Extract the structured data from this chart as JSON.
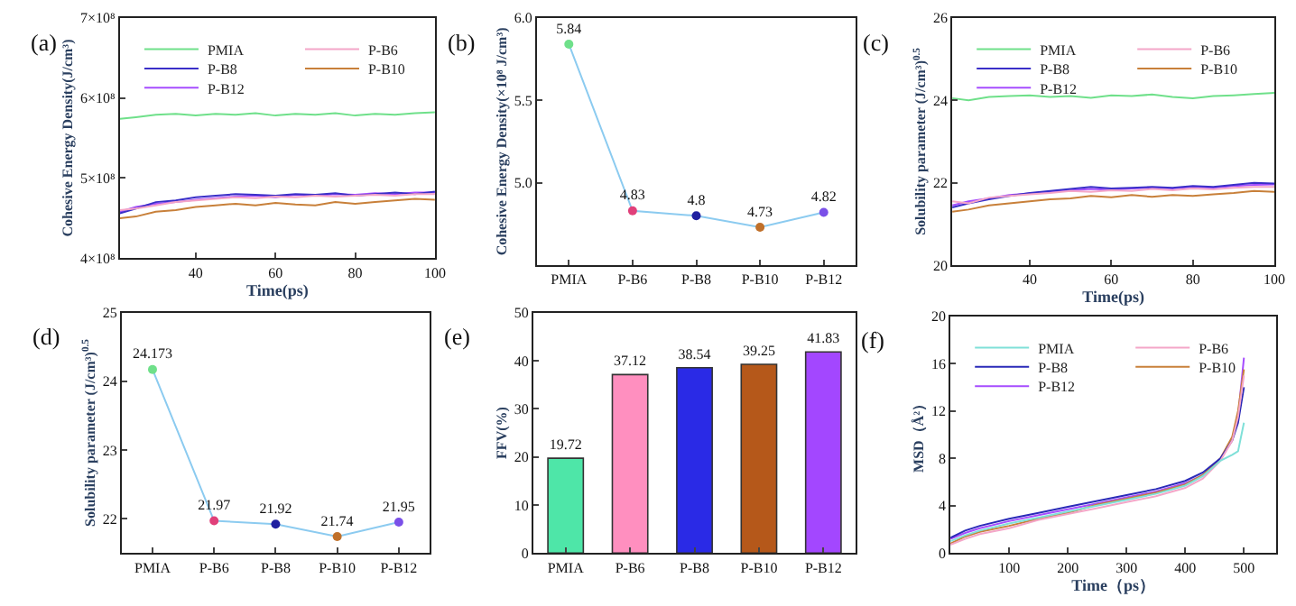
{
  "chart_data": [
    {
      "type": "line",
      "title": "(a)",
      "xlabel": "Time(ps)",
      "ylabel": "Cohesive Energy Density(J/cm³)",
      "x": [
        21,
        25,
        30,
        35,
        40,
        45,
        50,
        55,
        60,
        65,
        70,
        75,
        80,
        85,
        90,
        95,
        100
      ],
      "xlim": [
        21,
        100
      ],
      "xticks": [
        40,
        60,
        80,
        100
      ],
      "ylim": [
        400000000.0,
        700000000.0
      ],
      "yticks": [
        {
          "value": 400000000.0,
          "label": "4×10⁸"
        },
        {
          "value": 500000000.0,
          "label": "5×10⁸"
        },
        {
          "value": 600000000.0,
          "label": "6×10⁸"
        },
        {
          "value": 700000000.0,
          "label": "7×10⁸"
        }
      ],
      "legend": "top left",
      "marker": "none",
      "series": [
        {
          "name": "PMIA",
          "color": "#6fe08a",
          "values": [
            574000000.0,
            576000000.0,
            579000000.0,
            580000000.0,
            578000000.0,
            580000000.0,
            579000000.0,
            581000000.0,
            578000000.0,
            580000000.0,
            579000000.0,
            581000000.0,
            578000000.0,
            580000000.0,
            579000000.0,
            581000000.0,
            582000000.0
          ]
        },
        {
          "name": "P-B6",
          "color": "#f4a6c8",
          "values": [
            460000000.0,
            462000000.0,
            466000000.0,
            470000000.0,
            472000000.0,
            474000000.0,
            476000000.0,
            475000000.0,
            477000000.0,
            476000000.0,
            478000000.0,
            477000000.0,
            478000000.0,
            479000000.0,
            478000000.0,
            480000000.0,
            480000000.0
          ]
        },
        {
          "name": "P-B8",
          "color": "#3a2fc8",
          "values": [
            456000000.0,
            462000000.0,
            470000000.0,
            472000000.0,
            476000000.0,
            478000000.0,
            480000000.0,
            479000000.0,
            478000000.0,
            480000000.0,
            479000000.0,
            481000000.0,
            478000000.0,
            480000000.0,
            482000000.0,
            480000000.0,
            483000000.0
          ]
        },
        {
          "name": "P-B10",
          "color": "#c8803a",
          "values": [
            450000000.0,
            452000000.0,
            458000000.0,
            460000000.0,
            464000000.0,
            466000000.0,
            468000000.0,
            466000000.0,
            469000000.0,
            467000000.0,
            466000000.0,
            470000000.0,
            468000000.0,
            470000000.0,
            472000000.0,
            474000000.0,
            473000000.0
          ]
        },
        {
          "name": "P-B12",
          "color": "#a64dff",
          "values": [
            458000000.0,
            464000000.0,
            468000000.0,
            470000000.0,
            473000000.0,
            475000000.0,
            477000000.0,
            478000000.0,
            476000000.0,
            479000000.0,
            478000000.0,
            480000000.0,
            479000000.0,
            481000000.0,
            480000000.0,
            482000000.0,
            482000000.0
          ]
        }
      ]
    },
    {
      "type": "line",
      "title": "(b)",
      "ylabel": "Cohesive Energy Density(×10⁸ J/cm³)",
      "categories": [
        "PMIA",
        "P-B6",
        "P-B8",
        "P-B10",
        "P-B12"
      ],
      "ylim": [
        4.5,
        6.0
      ],
      "yticks": [
        {
          "value": 5,
          "label": "5.0"
        },
        5.5,
        {
          "value": 6,
          "label": "6.0"
        }
      ],
      "marker": "circle",
      "data_labels": true,
      "series": [
        {
          "color": "#8ccbf0",
          "colors": [
            "#6fe08a",
            "#e0407a",
            "#2020a0",
            "#c0702a",
            "#7a50e8"
          ],
          "values": [
            5.84,
            4.83,
            4.8,
            4.73,
            4.82
          ]
        }
      ]
    },
    {
      "type": "line",
      "title": "(c)",
      "xlabel": "Time(ps)",
      "ylabel": "Solubility parameter (J/cm³)$^{0.5}$",
      "x": [
        21,
        25,
        30,
        35,
        40,
        45,
        50,
        55,
        60,
        65,
        70,
        75,
        80,
        85,
        90,
        95,
        100
      ],
      "xlim": [
        21,
        100
      ],
      "xticks": [
        40,
        60,
        80,
        100
      ],
      "ylim": [
        20,
        26
      ],
      "yticks": [
        20,
        22,
        24,
        26
      ],
      "legend": "top left",
      "marker": "none",
      "series": [
        {
          "name": "PMIA",
          "color": "#6fe08a",
          "values": [
            24.05,
            24.0,
            24.08,
            24.1,
            24.12,
            24.08,
            24.1,
            24.06,
            24.12,
            24.1,
            24.14,
            24.08,
            24.05,
            24.1,
            24.12,
            24.15,
            24.18
          ]
        },
        {
          "name": "P-B6",
          "color": "#f4a6c8",
          "values": [
            21.55,
            21.5,
            21.64,
            21.68,
            21.72,
            21.75,
            21.8,
            21.78,
            21.82,
            21.8,
            21.85,
            21.82,
            21.86,
            21.84,
            21.88,
            21.9,
            21.9
          ]
        },
        {
          "name": "P-B8",
          "color": "#3a2fc8",
          "values": [
            21.4,
            21.5,
            21.6,
            21.68,
            21.75,
            21.8,
            21.85,
            21.9,
            21.86,
            21.88,
            21.9,
            21.88,
            21.92,
            21.9,
            21.95,
            22.0,
            21.98
          ]
        },
        {
          "name": "P-B10",
          "color": "#c8803a",
          "values": [
            21.3,
            21.35,
            21.45,
            21.5,
            21.55,
            21.6,
            21.62,
            21.68,
            21.65,
            21.7,
            21.66,
            21.7,
            21.68,
            21.72,
            21.75,
            21.8,
            21.78
          ]
        },
        {
          "name": "P-B12",
          "color": "#a64dff",
          "values": [
            21.45,
            21.55,
            21.62,
            21.7,
            21.74,
            21.78,
            21.82,
            21.85,
            21.83,
            21.86,
            21.88,
            21.86,
            21.9,
            21.88,
            21.92,
            21.95,
            21.96
          ]
        }
      ]
    },
    {
      "type": "line",
      "title": "(d)",
      "ylabel": "Solubility parameter (J/cm³)$^{0.5}$",
      "categories": [
        "PMIA",
        "P-B6",
        "P-B8",
        "P-B10",
        "P-B12"
      ],
      "ylim": [
        21.5,
        25
      ],
      "yticks": [
        22,
        23,
        24,
        25
      ],
      "marker": "circle",
      "data_labels": true,
      "series": [
        {
          "color": "#8ccbf0",
          "colors": [
            "#6fe08a",
            "#e0407a",
            "#2020a0",
            "#c0702a",
            "#7a50e8"
          ],
          "values": [
            24.173,
            21.97,
            21.92,
            21.74,
            21.95
          ]
        }
      ]
    },
    {
      "type": "bar",
      "title": "(e)",
      "ylabel": "FFV(%)",
      "categories": [
        "PMIA",
        "P-B6",
        "P-B8",
        "P-B10",
        "P-B12"
      ],
      "ylim": [
        0,
        50
      ],
      "yticks": [
        0,
        10,
        20,
        30,
        40,
        50
      ],
      "data_labels": true,
      "values": [
        19.72,
        37.12,
        38.54,
        39.25,
        41.83
      ],
      "colors": [
        "#4ee6a8",
        "#ff8fbf",
        "#2a2ae6",
        "#b5581a",
        "#a347ff"
      ]
    },
    {
      "type": "line",
      "title": "(f)",
      "xlabel": "Time（ps）",
      "ylabel": "MSD（Å²）",
      "x": [
        0,
        25,
        50,
        100,
        150,
        200,
        250,
        300,
        350,
        400,
        430,
        460,
        480,
        490,
        500
      ],
      "xlim": [
        0,
        555
      ],
      "xticks": [
        100,
        200,
        300,
        400,
        500
      ],
      "ylim": [
        0,
        20
      ],
      "yticks": [
        0,
        4,
        8,
        12,
        16,
        20
      ],
      "legend": "top left",
      "marker": "none",
      "series": [
        {
          "name": "PMIA",
          "color": "#7fe0d8",
          "values": [
            1.0,
            1.5,
            1.9,
            2.5,
            3.0,
            3.5,
            4.0,
            4.5,
            5.0,
            5.7,
            6.5,
            7.8,
            8.3,
            8.6,
            11
          ]
        },
        {
          "name": "P-B6",
          "color": "#f4a6c8",
          "values": [
            0.7,
            1.2,
            1.6,
            2.1,
            2.8,
            3.3,
            3.8,
            4.3,
            4.8,
            5.5,
            6.3,
            7.8,
            9.5,
            11.5,
            15
          ]
        },
        {
          "name": "P-B8",
          "color": "#2a2ab8",
          "values": [
            1.3,
            1.9,
            2.3,
            2.9,
            3.4,
            3.9,
            4.4,
            4.9,
            5.4,
            6.1,
            6.8,
            8.0,
            9.5,
            11,
            14
          ]
        },
        {
          "name": "P-B10",
          "color": "#c8803a",
          "values": [
            0.8,
            1.4,
            1.8,
            2.3,
            2.9,
            3.4,
            4.1,
            4.6,
            5.1,
            5.8,
            6.6,
            8.0,
            9.8,
            12,
            15.5
          ]
        },
        {
          "name": "P-B12",
          "color": "#a64dff",
          "values": [
            1.2,
            1.7,
            2.1,
            2.7,
            3.2,
            3.7,
            4.2,
            4.7,
            5.2,
            5.9,
            6.6,
            7.9,
            9.6,
            11.5,
            16.5
          ]
        }
      ]
    }
  ]
}
